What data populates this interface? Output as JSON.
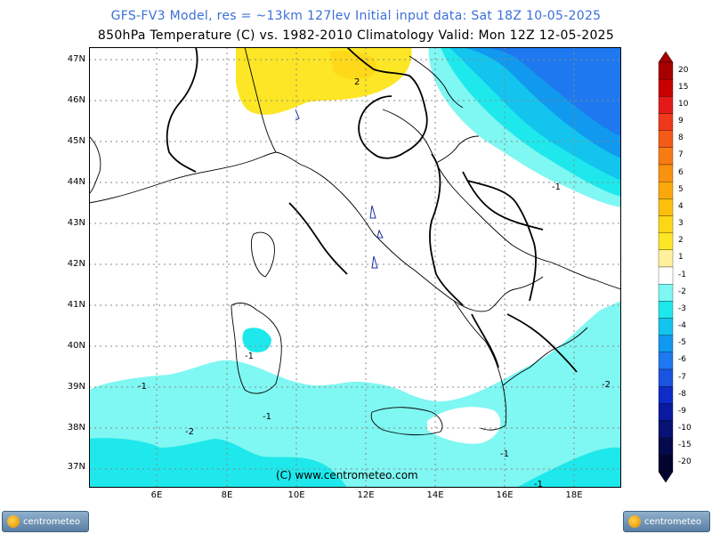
{
  "title_line1": "GFS-FV3 Model, res = ~13km 127lev    Initial input data: Sat 18Z 10-05-2025",
  "title_line2": "850hPa Temperature (C) vs. 1982-2010 Climatology  Valid: Mon 12Z 12-05-2025",
  "lat_labels": [
    "47N",
    "46N",
    "45N",
    "44N",
    "43N",
    "42N",
    "41N",
    "40N",
    "39N",
    "38N",
    "37N"
  ],
  "lon_labels": [
    "6E",
    "8E",
    "10E",
    "12E",
    "14E",
    "16E",
    "18E"
  ],
  "scale_labels": [
    "20",
    "15",
    "10",
    "9",
    "8",
    "7",
    "6",
    "5",
    "4",
    "3",
    "2",
    "1",
    "-1",
    "-2",
    "-3",
    "-4",
    "-5",
    "-6",
    "-7",
    "-8",
    "-9",
    "-10",
    "-15",
    "-20"
  ],
  "scale_colors": [
    "#a80000",
    "#c80000",
    "#e41a1a",
    "#f0381a",
    "#f45a18",
    "#f77a12",
    "#f9920e",
    "#fba80c",
    "#fcc00c",
    "#fdd616",
    "#fde625",
    "#fff19c",
    "#ffffff",
    "#7ff7f2",
    "#1ee8ec",
    "#12c4ee",
    "#1198ef",
    "#1e78f0",
    "#1b54e0",
    "#0f2cc8",
    "#0a1aa0",
    "#081275",
    "#050a4f",
    "#030530"
  ],
  "contour_labels": [
    "-1",
    "-1",
    "-1",
    "-1",
    "-2",
    "-2",
    "-1",
    "-1",
    "2"
  ],
  "copyright": "(C) www.centrometeo.com",
  "logo_left": "centrometeo",
  "logo_right": "centrometeo"
}
